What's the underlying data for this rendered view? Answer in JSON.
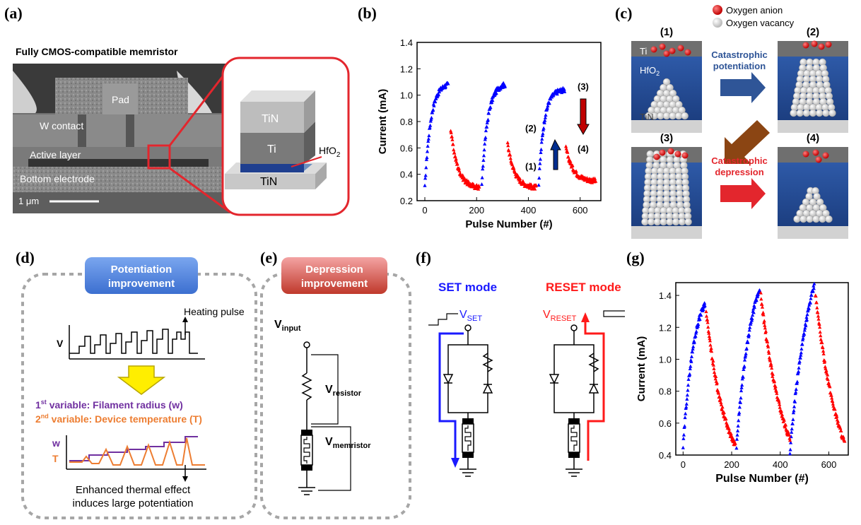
{
  "panel_labels": {
    "a": "(a)",
    "b": "(b)",
    "c": "(c)",
    "d": "(d)",
    "e": "(e)",
    "f": "(f)",
    "g": "(g)"
  },
  "panel_a": {
    "title": "Fully CMOS-compatible memristor",
    "sem_labels": {
      "pad": "Pad",
      "w_contact": "W contact",
      "active_layer": "Active layer",
      "bottom_electrode": "Bottom electrode",
      "scale": "1 μm"
    },
    "stack": {
      "top": "TiN",
      "mid": "Ti",
      "ox_base": "HfO",
      "ox_sub": "2",
      "bottom": "TiN"
    },
    "colors": {
      "highlight": "#e3262d"
    }
  },
  "panel_c": {
    "legend": {
      "anion": "Oxygen anion",
      "vacancy": "Oxygen vacancy"
    },
    "states": [
      "(1)",
      "(2)",
      "(3)",
      "(4)"
    ],
    "layer_labels": {
      "ti": "Ti",
      "hf_base": "HfO",
      "hf_sub": "2",
      "tin": "TiN"
    },
    "pot_lines": [
      "Catastrophic",
      "potentiation"
    ],
    "dep_lines": [
      "Catastrophic",
      "depression"
    ],
    "colors": {
      "pot": "#2f5597",
      "dep": "#e3262d",
      "down": "#8b4513",
      "anion": "#e3262d"
    }
  },
  "panel_d": {
    "header_lines": [
      "Potentiation",
      "improvement"
    ],
    "heating_pulse": "Heating pulse",
    "v_label": "V",
    "var1": {
      "sup": "st",
      "pre": "1",
      "text": " variable: Filament radius (w)"
    },
    "var2": {
      "sup": "nd",
      "pre": "2",
      "text": " variable: Device temperature (T)"
    },
    "w_label": "w",
    "t_label": "T",
    "caption_lines": [
      "Enhanced thermal effect",
      "induces large potentiation"
    ],
    "colors": {
      "header": "#4a7fd8",
      "var1": "#7030a0",
      "var2": "#ed7d31",
      "arrow": "#ffee00"
    }
  },
  "panel_e": {
    "header_lines": [
      "Depression",
      "improvement"
    ],
    "v_input_base": "V",
    "v_input_sub": "input",
    "v_res_base": "V",
    "v_res_sub": "resistor",
    "v_mem_base": "V",
    "v_mem_sub": "memristor",
    "colors": {
      "header": "#e06666"
    }
  },
  "panel_f": {
    "set_mode": "SET mode",
    "reset_mode": "RESET mode",
    "v_set_base": "V",
    "v_set_sub": "SET",
    "v_reset_base": "V",
    "v_reset_sub": "RESET",
    "colors": {
      "set": "#1a1aff",
      "reset": "#ff1a1a"
    }
  },
  "chart_data": [
    {
      "type": "scatter",
      "panel": "(b)",
      "xlabel": "Pulse Number (#)",
      "ylabel": "Current (mA)",
      "xlim": [
        -30,
        680
      ],
      "ylim": [
        0.2,
        1.4
      ],
      "xticks": [
        0,
        200,
        400,
        600
      ],
      "yticks": [
        0.2,
        0.4,
        0.6,
        0.8,
        1.0,
        1.2,
        1.4
      ],
      "annotations": [
        "(1)",
        "(2)",
        "(3)",
        "(4)"
      ],
      "series": [
        {
          "color": "#0000ff",
          "segments": [
            {
              "x0": 0,
              "x1": 90,
              "y0": 0.3,
              "y1": 1.08,
              "k": 4
            },
            {
              "x0": 220,
              "x1": 310,
              "y0": 0.32,
              "y1": 1.08,
              "k": 4
            },
            {
              "x0": 440,
              "x1": 540,
              "y0": 0.32,
              "y1": 1.04,
              "k": 5
            }
          ]
        },
        {
          "color": "#ff0000",
          "segments": [
            {
              "x0": 100,
              "x1": 210,
              "y0": 0.74,
              "y1": 0.3,
              "k": 4
            },
            {
              "x0": 320,
              "x1": 430,
              "y0": 0.63,
              "y1": 0.3,
              "k": 4
            },
            {
              "x0": 545,
              "x1": 660,
              "y0": 0.6,
              "y1": 0.35,
              "k": 4
            }
          ]
        }
      ]
    },
    {
      "type": "scatter",
      "panel": "(g)",
      "xlabel": "Pulse Number (#)",
      "ylabel": "Current (mA)",
      "xlim": [
        -30,
        680
      ],
      "ylim": [
        0.4,
        1.48
      ],
      "xticks": [
        0,
        200,
        400,
        600
      ],
      "yticks": [
        0.4,
        0.6,
        0.8,
        1.0,
        1.2,
        1.4
      ],
      "series": [
        {
          "color": "#0000ff",
          "segments": [
            {
              "x0": 0,
              "x1": 90,
              "y0": 0.45,
              "y1": 1.35,
              "k": 2
            },
            {
              "x0": 220,
              "x1": 315,
              "y0": 0.46,
              "y1": 1.44,
              "k": 1.5
            },
            {
              "x0": 440,
              "x1": 540,
              "y0": 0.42,
              "y1": 1.46,
              "k": 1.2
            }
          ]
        },
        {
          "color": "#ff0000",
          "segments": [
            {
              "x0": 95,
              "x1": 215,
              "y0": 1.3,
              "y1": 0.46,
              "k": 1.5
            },
            {
              "x0": 320,
              "x1": 440,
              "y0": 1.4,
              "y1": 0.5,
              "k": 1.2
            },
            {
              "x0": 545,
              "x1": 665,
              "y0": 1.4,
              "y1": 0.48,
              "k": 1.2
            }
          ]
        }
      ]
    }
  ]
}
